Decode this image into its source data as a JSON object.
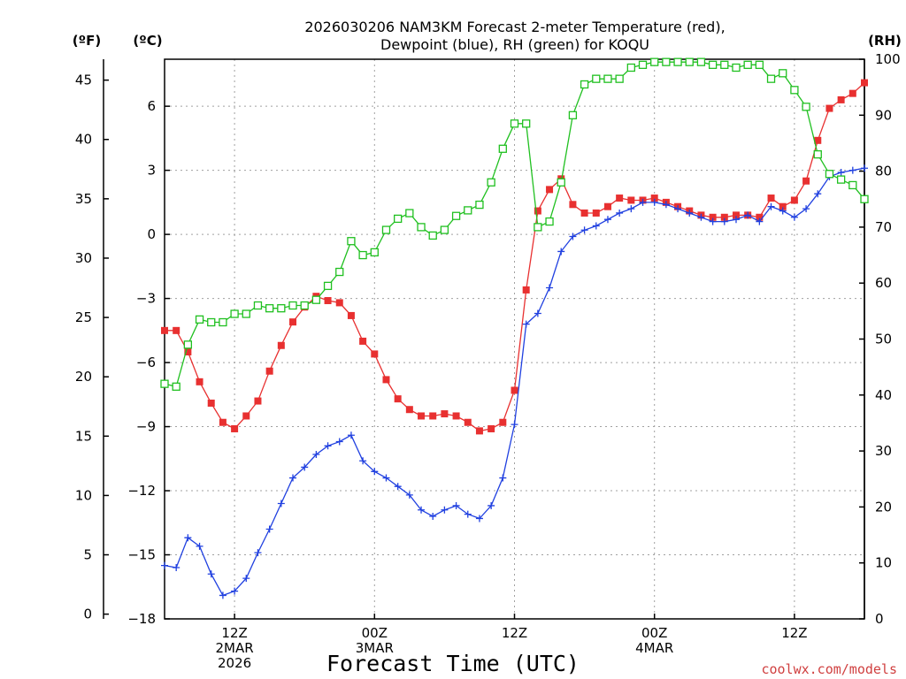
{
  "chart_data": {
    "type": "line",
    "title_line1": "2026030206 NAM3KM Forecast 2-meter Temperature (red),",
    "title_line2": "Dewpoint (blue), RH (green) for KOQU",
    "xlabel": "Forecast Time (UTC)",
    "credit": "coolwx.com/models",
    "left_outer_unit": "(ºF)",
    "left_inner_unit": "(ºC)",
    "right_unit": "(RH)",
    "x_hours_range": [
      0,
      60
    ],
    "celsius_range": [
      -18,
      8.2
    ],
    "rh_range": [
      0,
      100
    ],
    "fahrenheit_ticks": [
      "0",
      "5",
      "10",
      "15",
      "20",
      "25",
      "30",
      "35",
      "40",
      "45"
    ],
    "celsius_ticks": [
      "-18",
      "-15",
      "-12",
      "-9",
      "-6",
      "-3",
      "0",
      "3",
      "6"
    ],
    "rh_ticks": [
      "0",
      "10",
      "20",
      "30",
      "40",
      "50",
      "60",
      "70",
      "80",
      "90",
      "100"
    ],
    "x_ticks": [
      {
        "hour": 6,
        "lines": [
          "12Z",
          "2MAR",
          "2026"
        ]
      },
      {
        "hour": 18,
        "lines": [
          "00Z",
          "3MAR"
        ]
      },
      {
        "hour": 30,
        "lines": [
          "12Z"
        ]
      },
      {
        "hour": 42,
        "lines": [
          "00Z",
          "4MAR"
        ]
      },
      {
        "hour": 54,
        "lines": [
          "12Z"
        ]
      }
    ],
    "series": [
      {
        "name": "Temperature",
        "unit": "C",
        "color": "#e83030",
        "marker": "filled-square",
        "values": [
          -4.5,
          -4.5,
          -5.5,
          -6.9,
          -7.9,
          -8.8,
          -9.1,
          -8.5,
          -7.8,
          -6.4,
          -5.2,
          -4.1,
          -3.4,
          -2.9,
          -3.1,
          -3.2,
          -3.8,
          -5.0,
          -5.6,
          -6.8,
          -7.7,
          -8.2,
          -8.5,
          -8.5,
          -8.4,
          -8.5,
          -8.8,
          -9.2,
          -9.1,
          -8.8,
          -7.3,
          -2.6,
          1.1,
          2.1,
          2.6,
          1.4,
          1.0,
          1.0,
          1.3,
          1.7,
          1.6,
          1.6,
          1.7,
          1.5,
          1.3,
          1.1,
          0.9,
          0.8,
          0.8,
          0.9,
          0.9,
          0.8,
          1.7,
          1.3,
          1.6,
          2.5,
          4.4,
          5.9,
          6.3,
          6.6,
          7.1
        ]
      },
      {
        "name": "Dewpoint",
        "unit": "C",
        "color": "#2040e0",
        "marker": "plus",
        "values": [
          -15.5,
          -15.6,
          -14.2,
          -14.6,
          -15.9,
          -16.9,
          -16.7,
          -16.1,
          -14.9,
          -13.8,
          -12.6,
          -11.4,
          -10.9,
          -10.3,
          -9.9,
          -9.7,
          -9.4,
          -10.6,
          -11.1,
          -11.4,
          -11.8,
          -12.2,
          -12.9,
          -13.2,
          -12.9,
          -12.7,
          -13.1,
          -13.3,
          -12.7,
          -11.4,
          -8.9,
          -4.2,
          -3.7,
          -2.5,
          -0.8,
          -0.1,
          0.2,
          0.4,
          0.7,
          1.0,
          1.2,
          1.5,
          1.5,
          1.4,
          1.2,
          1.0,
          0.8,
          0.6,
          0.6,
          0.7,
          0.9,
          0.6,
          1.3,
          1.1,
          0.8,
          1.2,
          1.9,
          2.7,
          2.9,
          3.0,
          3.1
        ]
      },
      {
        "name": "RH",
        "unit": "%",
        "color": "#20c020",
        "marker": "open-square",
        "values": [
          42,
          41.5,
          49,
          53.5,
          53,
          53,
          54.5,
          54.5,
          56,
          55.5,
          55.5,
          56,
          56,
          57,
          59.5,
          62,
          67.5,
          65,
          65.5,
          69.5,
          71.5,
          72.5,
          70,
          68.5,
          69.5,
          72,
          73,
          74,
          78,
          84,
          88.5,
          88.5,
          70,
          71,
          78,
          90,
          95.5,
          96.5,
          96.5,
          96.5,
          98.5,
          99,
          99.5,
          99.5,
          99.5,
          99.5,
          99.5,
          99,
          99,
          98.5,
          99,
          99,
          96.5,
          97.5,
          94.5,
          91.5,
          83,
          79.5,
          78.5,
          77.5,
          75
        ]
      }
    ]
  }
}
